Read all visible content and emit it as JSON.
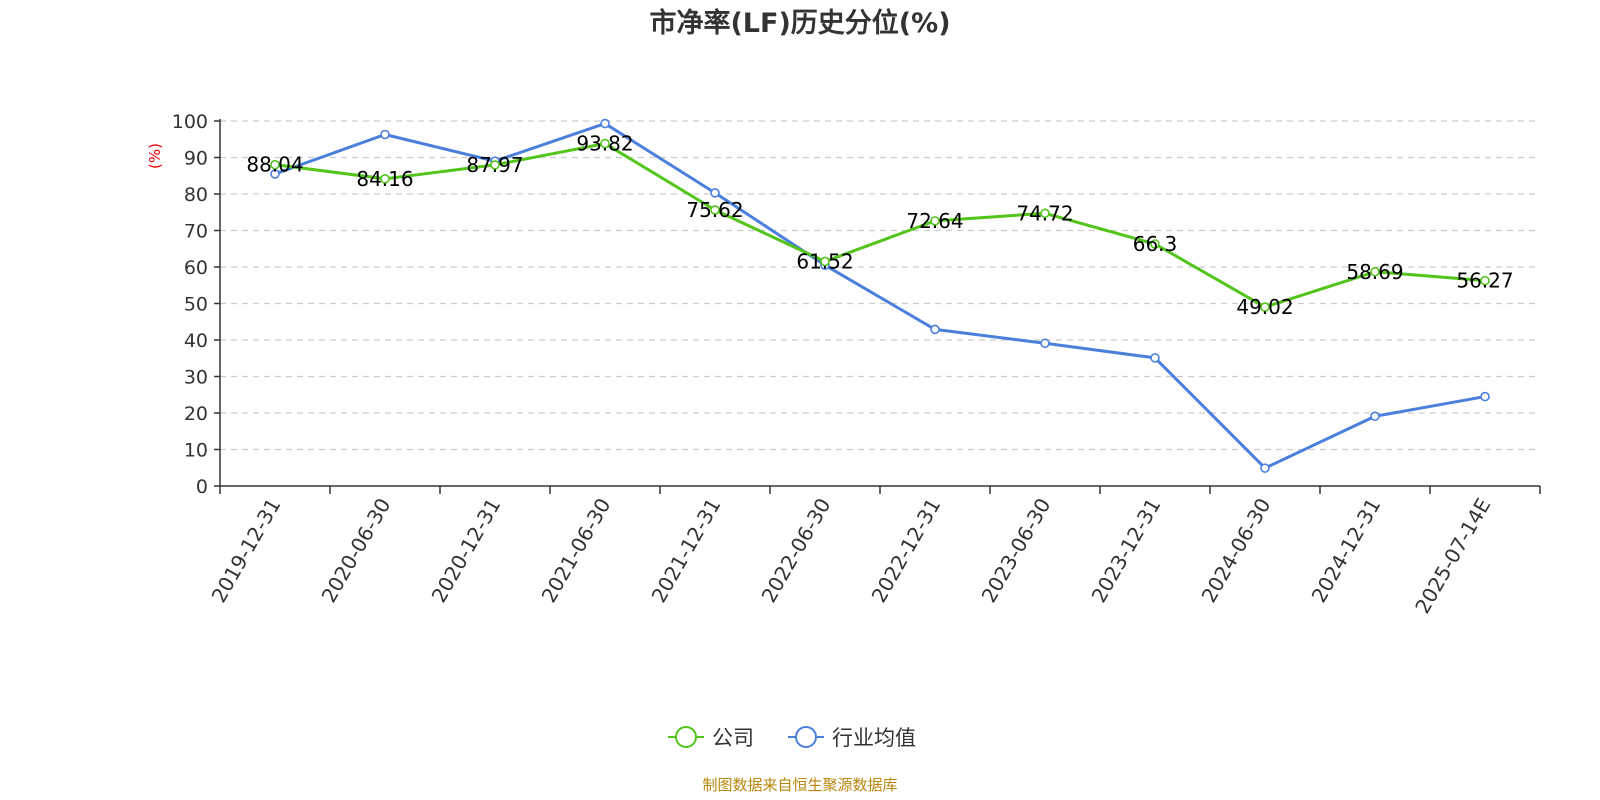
{
  "chart_data": {
    "type": "line",
    "title": "市净率(LF)历史分位(%)",
    "ylabel": "(%)",
    "ylim": [
      0,
      100
    ],
    "yticks": [
      0,
      10,
      20,
      30,
      40,
      50,
      60,
      70,
      80,
      90,
      100
    ],
    "categories": [
      "2019-12-31",
      "2020-06-30",
      "2020-12-31",
      "2021-06-30",
      "2021-12-31",
      "2022-06-30",
      "2022-12-31",
      "2023-06-30",
      "2023-12-31",
      "2024-06-30",
      "2024-12-31",
      "2025-07-14E"
    ],
    "series": [
      {
        "name": "公司",
        "color": "#52c41a",
        "values": [
          88.04,
          84.16,
          87.97,
          93.82,
          75.62,
          61.52,
          72.64,
          74.72,
          66.3,
          49.02,
          58.69,
          56.27
        ],
        "labels": [
          "88.04",
          "84.16",
          "87.97",
          "93.82",
          "75.62",
          "61.52",
          "72.64",
          "74.72",
          "66.3",
          "49.02",
          "58.69",
          "56.27"
        ],
        "show_labels": true
      },
      {
        "name": "行业均值",
        "color": "#4a7fdc",
        "values": [
          85.5,
          96.3,
          89.0,
          99.3,
          80.3,
          60.5,
          42.9,
          39.1,
          35.1,
          4.9,
          19.1,
          24.5
        ],
        "show_labels": false
      }
    ],
    "grid": true,
    "legend": "bottom-center",
    "ylabel_color": "#e60000"
  },
  "source_text": "制图数据来自恒生聚源数据库",
  "source_color": "#b8860b"
}
